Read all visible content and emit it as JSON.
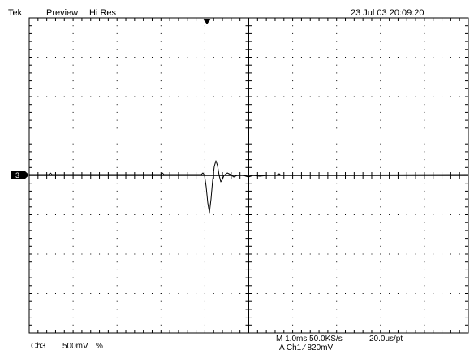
{
  "header": {
    "brand": "Tek",
    "mode": "Preview",
    "acq": "Hi Res",
    "datetime": "23 Jul 03 20:09:20"
  },
  "channel_marker": "3",
  "footer": {
    "channel": "Ch3",
    "scale": "500mV",
    "coupling": "%",
    "horizontal": "M 1.0ms 50.0KS/s",
    "per_point": "20.0us/pt",
    "trigger": "A  Ch1  ∕  820mV"
  },
  "colors": {
    "background": "#ffffff",
    "grid": "#000000",
    "trace": "#000000"
  },
  "icons": {
    "trigger_position": "trigger-down-triangle-icon",
    "channel_ground": "channel-ground-marker-icon"
  }
}
